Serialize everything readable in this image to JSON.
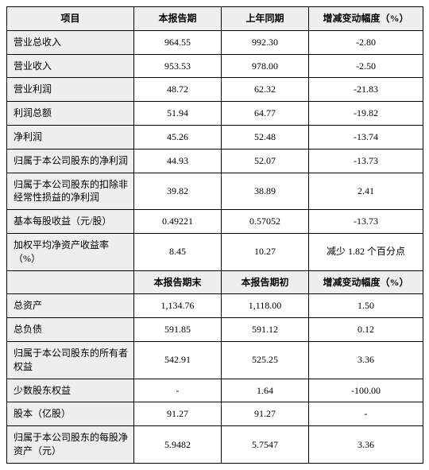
{
  "headers1": {
    "item": "项目",
    "col1": "本报告期",
    "col2": "上年同期",
    "col3": "增减变动幅度（%）"
  },
  "headers2": {
    "col1": "本报告期末",
    "col2": "本报告期初",
    "col3": "增减变动幅度（%）"
  },
  "section1": [
    {
      "label": "营业总收入",
      "v1": "964.55",
      "v2": "992.30",
      "v3": "-2.80"
    },
    {
      "label": "营业收入",
      "v1": "953.53",
      "v2": "978.00",
      "v3": "-2.50"
    },
    {
      "label": "营业利润",
      "v1": "48.72",
      "v2": "62.32",
      "v3": "-21.83"
    },
    {
      "label": "利润总额",
      "v1": "51.94",
      "v2": "64.77",
      "v3": "-19.82"
    },
    {
      "label": "净利润",
      "v1": "45.26",
      "v2": "52.48",
      "v3": "-13.74"
    },
    {
      "label": "归属于本公司股东的净利润",
      "v1": "44.93",
      "v2": "52.07",
      "v3": "-13.73"
    }
  ],
  "section2": [
    {
      "label": "归属于本公司股东的扣除非经常性损益的净利润",
      "v1": "39.82",
      "v2": "38.89",
      "v3": "2.41"
    },
    {
      "label": "基本每股收益（元/股）",
      "v1": "0.49221",
      "v2": "0.57052",
      "v3": "-13.73"
    },
    {
      "label": "加权平均净资产收益率（%）",
      "v1": "8.45",
      "v2": "10.27",
      "v3": "减少 1.82 个百分点"
    }
  ],
  "section3": [
    {
      "label": "总资产",
      "v1": "1,134.76",
      "v2": "1,118.00",
      "v3": "1.50"
    },
    {
      "label": "总负债",
      "v1": "591.85",
      "v2": "591.12",
      "v3": "0.12"
    },
    {
      "label": "归属于本公司股东的所有者权益",
      "v1": "542.91",
      "v2": "525.25",
      "v3": "3.36"
    },
    {
      "label": "少数股东权益",
      "v1": "-",
      "v2": "1.64",
      "v3": "-100.00"
    },
    {
      "label": "股本（亿股）",
      "v1": "91.27",
      "v2": "91.27",
      "v3": "-"
    },
    {
      "label": "归属于本公司股东的每股净资产（元）",
      "v1": "5.9482",
      "v2": "5.7547",
      "v3": "3.36"
    }
  ]
}
